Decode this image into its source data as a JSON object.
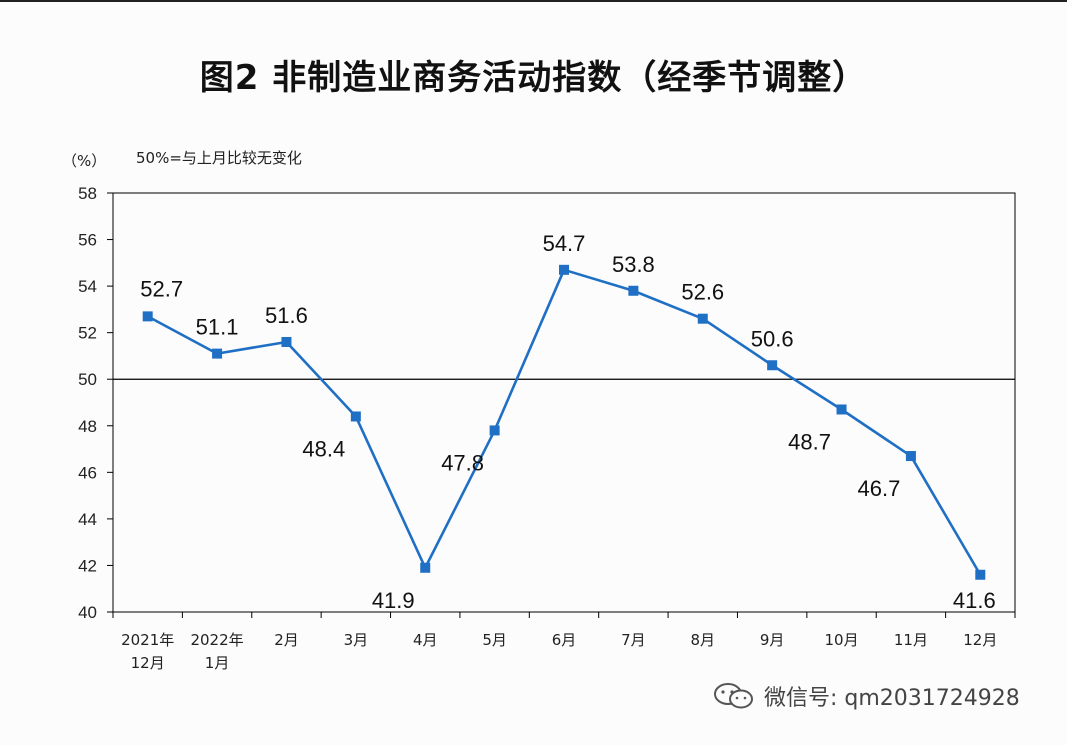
{
  "title": "图2 非制造业商务活动指数（经季节调整）",
  "unit_label": "（%）",
  "reference_note": "50%=与上月比较无变化",
  "watermark": "微信号: qm2031724928",
  "colors": {
    "line": "#1f6fc5",
    "axis": "#000000",
    "text": "#111111"
  },
  "chart_data": {
    "type": "line",
    "title": "图2 非制造业商务活动指数（经季节调整）",
    "ylabel": "（%）",
    "ylim": [
      40,
      58
    ],
    "yticks": [
      40,
      42,
      44,
      46,
      48,
      50,
      52,
      54,
      56,
      58
    ],
    "reference_line": 50,
    "categories": [
      [
        "2021年",
        "12月"
      ],
      [
        "2022年",
        "1月"
      ],
      [
        "2月"
      ],
      [
        "3月"
      ],
      [
        "4月"
      ],
      [
        "5月"
      ],
      [
        "6月"
      ],
      [
        "7月"
      ],
      [
        "8月"
      ],
      [
        "9月"
      ],
      [
        "10月"
      ],
      [
        "11月"
      ],
      [
        "12月"
      ]
    ],
    "series": [
      {
        "values": [
          52.7,
          51.1,
          51.6,
          48.4,
          41.9,
          47.8,
          54.7,
          53.8,
          52.6,
          50.6,
          48.7,
          46.7,
          41.6
        ],
        "label_position": [
          "above",
          "above",
          "above",
          "below",
          "below",
          "below",
          "above",
          "above",
          "above",
          "above",
          "below",
          "below",
          "below"
        ]
      }
    ],
    "grid": false,
    "legend": "none"
  }
}
